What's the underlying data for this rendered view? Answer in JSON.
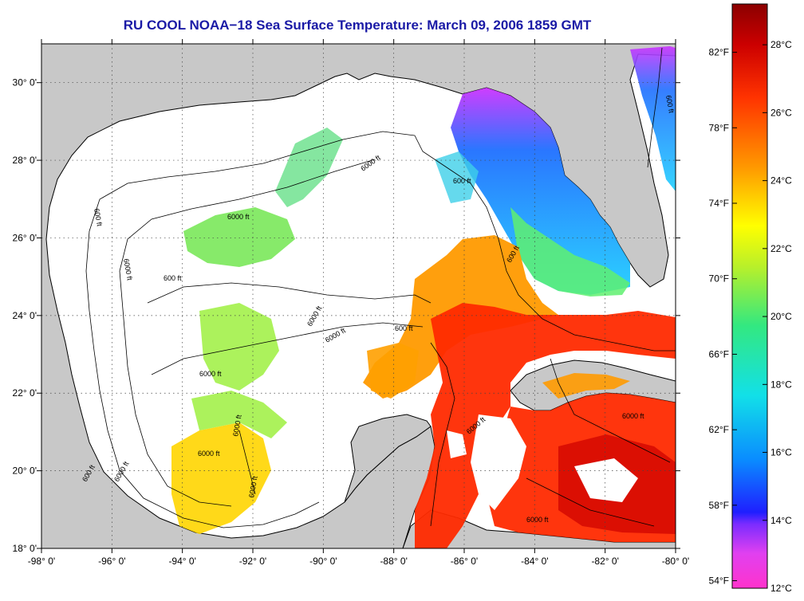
{
  "map": {
    "title": "RU COOL  NOAA−18  Sea Surface Temperature:  March 09, 2006 1859 GMT",
    "longitude_labels": [
      "-98° 0'",
      "-96° 0'",
      "-94° 0'",
      "-92° 0'",
      "-90° 0'",
      "-88° 0'",
      "-86° 0'",
      "-84° 0'",
      "-82° 0'",
      "-80° 0'"
    ],
    "latitude_labels": [
      "30° 0'",
      "28° 0'",
      "26° 0'",
      "24° 0'",
      "22° 0'",
      "20° 0'",
      "18° 0'"
    ],
    "longitude_values": [
      -98,
      -96,
      -94,
      -92,
      -90,
      -88,
      -86,
      -84,
      -82,
      -80
    ],
    "latitude_values": [
      30,
      28,
      26,
      24,
      22,
      20,
      18
    ],
    "lon_range": [
      -98,
      -80
    ],
    "lat_range": [
      18,
      31
    ],
    "land_color": "#c8c8c8",
    "cloud_color": "#ffffff",
    "grid": "dotted",
    "contour_labels": [
      "600 ft",
      "6000 ft",
      "600 ft",
      "6000 ft",
      "600 ft",
      "6000 ft",
      "6000 ft",
      "6000 ft",
      "600 ft",
      "6000 ft",
      "600 ft",
      "6000 ft",
      "6000 ft",
      "6000 ft",
      "6000 ft",
      "600 ft",
      "6000 ft",
      "6000 ft",
      "600 ft",
      "6000 ft"
    ]
  },
  "colorbar": {
    "celsius_labels": [
      "28°C",
      "26°C",
      "24°C",
      "22°C",
      "20°C",
      "18°C",
      "16°C",
      "14°C",
      "12°C"
    ],
    "celsius_values": [
      28,
      26,
      24,
      22,
      20,
      18,
      16,
      14,
      12
    ],
    "fahrenheit_labels": [
      "82°F",
      "78°F",
      "74°F",
      "70°F",
      "66°F",
      "62°F",
      "58°F",
      "54°F"
    ],
    "fahrenheit_values": [
      82,
      78,
      74,
      70,
      66,
      62,
      58,
      54
    ],
    "range_celsius": [
      12,
      29.2
    ],
    "colors": [
      "#ff33cc",
      "#cc33ff",
      "#1f1fff",
      "#0a8cff",
      "#12e0e8",
      "#33e880",
      "#b8f02a",
      "#ffff00",
      "#ff9900",
      "#ff3300",
      "#cc0000",
      "#8b0000"
    ]
  }
}
